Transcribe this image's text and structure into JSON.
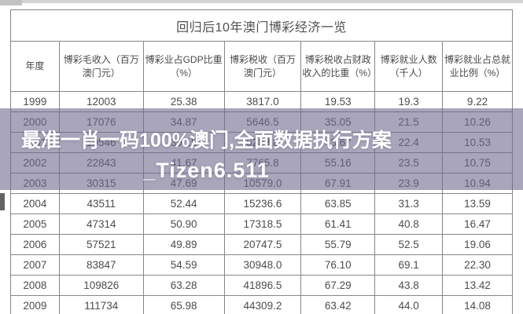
{
  "page": {
    "title": "回归后10年澳门博彩经济一览"
  },
  "watermark": {
    "line1": "最准一肖一码100%澳门,全面数据执行方案",
    "line2": "_Tizen6.511",
    "band_color": "rgba(112,105,142,0.6)",
    "text_color": "#ffffff"
  },
  "chart_data": {
    "type": "table",
    "title": "回归后10年澳门博彩经济一览",
    "columns": [
      "年度",
      "博彩毛收入（百万澳门元）",
      "博彩业占GDP比重（%）",
      "博彩税收（百万澳门元）",
      "博彩税收占财政收入的比重（%）",
      "博彩就业人数（千人）",
      "博彩就业占总就业比例（%）"
    ],
    "rows": [
      [
        "1999",
        "12003",
        "25.38",
        "3817.0",
        "19.53",
        "19.3",
        "9.22"
      ],
      [
        "2000",
        "17076",
        "34.87",
        "5646.5",
        "35.05",
        "21.5",
        "10.26"
      ],
      [
        "2001",
        "19546",
        "39.15",
        "6288.8",
        "43.67",
        "22.4",
        "10.53"
      ],
      [
        "2002",
        "22843",
        "41.67",
        "7765.8",
        "55.16",
        "23.5",
        "10.75"
      ],
      [
        "2003",
        "30315",
        "47.69",
        "10579.0",
        "67.91",
        "23.9",
        "10.94"
      ],
      [
        "2004",
        "43511",
        "52.44",
        "15236.6",
        "63.85",
        "31.3",
        "13.59"
      ],
      [
        "2005",
        "47314",
        "50.90",
        "17318.5",
        "61.41",
        "40.8",
        "16.47"
      ],
      [
        "2006",
        "57521",
        "49.89",
        "20747.5",
        "55.79",
        "52.5",
        "19.06"
      ],
      [
        "2007",
        "83847",
        "54.59",
        "30948.0",
        "76.10",
        "69.1",
        "22.30"
      ],
      [
        "2008",
        "109826",
        "63.28",
        "41896.5",
        "67.29",
        "43.8",
        "13.42"
      ],
      [
        "2009",
        "111734",
        "65.98",
        "44309.2",
        "63.42",
        "44.0",
        "14.08"
      ]
    ]
  }
}
